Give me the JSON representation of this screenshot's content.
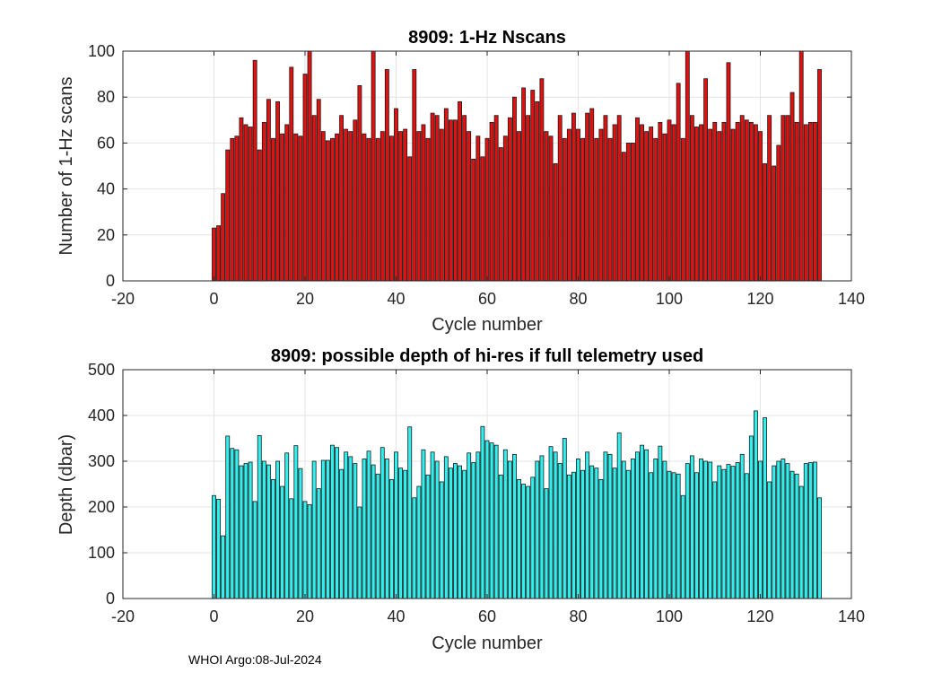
{
  "colors": {
    "top_bar": "#e31010",
    "bottom_bar": "#2ff0ee",
    "bar_edge": "#1a1a1a"
  },
  "chart_data": [
    {
      "type": "bar",
      "title": "8909: 1-Hz Nscans",
      "xlabel": "Cycle number",
      "ylabel": "Number of 1-Hz scans",
      "xlim": [
        -20,
        140
      ],
      "ylim": [
        0,
        100
      ],
      "xticks": [
        -20,
        0,
        20,
        40,
        60,
        80,
        100,
        120,
        140
      ],
      "yticks": [
        0,
        20,
        40,
        60,
        80,
        100
      ],
      "grid": true,
      "x_start": 0,
      "values": [
        23,
        24,
        38,
        57,
        62,
        63,
        71,
        68,
        67,
        96,
        57,
        69,
        79,
        62,
        78,
        64,
        68,
        93,
        64,
        63,
        90,
        100,
        72,
        79,
        65,
        61,
        62,
        64,
        72,
        66,
        65,
        70,
        85,
        64,
        62,
        100,
        62,
        65,
        92,
        63,
        75,
        65,
        66,
        54,
        92,
        65,
        68,
        62,
        73,
        72,
        66,
        75,
        70,
        70,
        78,
        72,
        65,
        53,
        63,
        54,
        62,
        69,
        72,
        58,
        63,
        71,
        80,
        65,
        84,
        72,
        83,
        78,
        88,
        65,
        63,
        51,
        72,
        62,
        66,
        73,
        66,
        62,
        73,
        75,
        62,
        66,
        72,
        62,
        68,
        72,
        56,
        60,
        60,
        71,
        68,
        65,
        67,
        62,
        69,
        64,
        70,
        68,
        86,
        62,
        100,
        72,
        67,
        68,
        88,
        66,
        69,
        65,
        69,
        95,
        66,
        69,
        72,
        70,
        69,
        68,
        65,
        51,
        72,
        50,
        59,
        72,
        72,
        82,
        69,
        100,
        68,
        69,
        69,
        92
      ]
    },
    {
      "type": "bar",
      "title": "8909: possible depth of hi-res if full telemetry used",
      "xlabel": "Cycle number",
      "ylabel": "Depth (dbar)",
      "xlim": [
        -20,
        140
      ],
      "ylim": [
        0,
        500
      ],
      "xticks": [
        -20,
        0,
        20,
        40,
        60,
        80,
        100,
        120,
        140
      ],
      "yticks": [
        0,
        100,
        200,
        300,
        400,
        500
      ],
      "grid": true,
      "x_start": 0,
      "values": [
        225,
        217,
        137,
        355,
        328,
        325,
        290,
        295,
        298,
        212,
        356,
        300,
        292,
        260,
        300,
        245,
        318,
        218,
        334,
        284,
        212,
        205,
        300,
        240,
        302,
        302,
        335,
        330,
        282,
        320,
        310,
        295,
        200,
        305,
        322,
        292,
        272,
        330,
        305,
        260,
        320,
        285,
        280,
        375,
        220,
        245,
        325,
        270,
        320,
        300,
        255,
        310,
        285,
        295,
        290,
        280,
        318,
        297,
        320,
        376,
        345,
        340,
        335,
        270,
        325,
        300,
        315,
        260,
        250,
        245,
        265,
        300,
        312,
        240,
        332,
        320,
        295,
        350,
        270,
        276,
        305,
        280,
        320,
        290,
        285,
        260,
        320,
        315,
        285,
        362,
        300,
        280,
        305,
        320,
        335,
        325,
        275,
        305,
        333,
        300,
        278,
        275,
        272,
        225,
        295,
        312,
        275,
        305,
        300,
        298,
        255,
        290,
        282,
        293,
        289,
        297,
        315,
        273,
        355,
        410,
        300,
        395,
        255,
        290,
        300,
        305,
        295,
        278,
        272,
        245,
        295,
        297,
        298,
        220
      ]
    }
  ],
  "footer": "WHOI Argo:08-Jul-2024"
}
